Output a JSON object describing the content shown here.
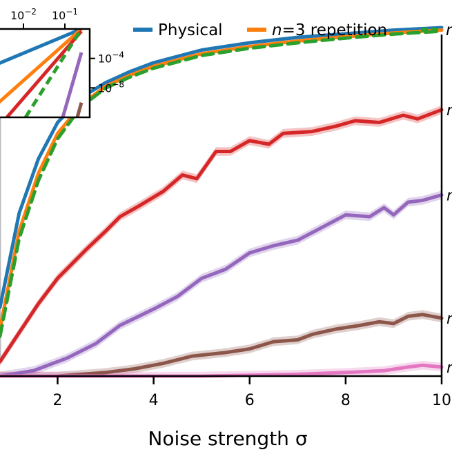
{
  "chart_data": {
    "type": "line",
    "xlabel": "Noise strength σ",
    "xlim": [
      0.8,
      10
    ],
    "ylim": [
      0,
      1
    ],
    "x_ticks": [
      {
        "value": 2,
        "label": "2"
      },
      {
        "value": 4,
        "label": "4"
      },
      {
        "value": 6,
        "label": "6"
      },
      {
        "value": 8,
        "label": "8"
      },
      {
        "value": 10,
        "label": "10"
      }
    ],
    "legend": {
      "placement": "top",
      "entries": [
        {
          "label": "Physical",
          "color": "#1f77b4",
          "style": "solid"
        },
        {
          "label": "n=3 repetition",
          "color": "#ff7f0e",
          "style": "solid"
        },
        {
          "label": "n",
          "color": "#2ca02c",
          "style": "dashed"
        }
      ]
    },
    "series": [
      {
        "label_key": "physical",
        "color": "#1f77b4",
        "style": "solid",
        "band": false,
        "points": [
          [
            0.8,
            0.19
          ],
          [
            1.2,
            0.45
          ],
          [
            1.6,
            0.6
          ],
          [
            2.0,
            0.7
          ],
          [
            2.5,
            0.77
          ],
          [
            3.0,
            0.81
          ],
          [
            3.5,
            0.84
          ],
          [
            4.0,
            0.865
          ],
          [
            5.0,
            0.9
          ],
          [
            6.0,
            0.92
          ],
          [
            7.0,
            0.935
          ],
          [
            8.0,
            0.945
          ],
          [
            9.0,
            0.955
          ],
          [
            10.0,
            0.962
          ]
        ]
      },
      {
        "label_key": "rep3",
        "color": "#ff7f0e",
        "style": "solid",
        "band": false,
        "points": [
          [
            0.8,
            0.13
          ],
          [
            1.2,
            0.4
          ],
          [
            1.6,
            0.56
          ],
          [
            2.0,
            0.67
          ],
          [
            2.5,
            0.75
          ],
          [
            3.0,
            0.8
          ],
          [
            3.5,
            0.83
          ],
          [
            4.0,
            0.855
          ],
          [
            5.0,
            0.89
          ],
          [
            6.0,
            0.91
          ],
          [
            7.0,
            0.925
          ],
          [
            8.0,
            0.937
          ],
          [
            9.0,
            0.947
          ],
          [
            10.0,
            0.955
          ]
        ]
      },
      {
        "label_key": "n_green",
        "color": "#2ca02c",
        "style": "dashed",
        "band": false,
        "points": [
          [
            0.8,
            0.11
          ],
          [
            1.2,
            0.38
          ],
          [
            1.6,
            0.54
          ],
          [
            2.0,
            0.655
          ],
          [
            2.5,
            0.745
          ],
          [
            3.0,
            0.795
          ],
          [
            3.5,
            0.825
          ],
          [
            4.0,
            0.85
          ],
          [
            5.0,
            0.885
          ],
          [
            6.0,
            0.905
          ],
          [
            7.0,
            0.92
          ],
          [
            8.0,
            0.933
          ],
          [
            9.0,
            0.944
          ],
          [
            10.0,
            0.952
          ]
        ]
      },
      {
        "label_key": "n_red",
        "color": "#d62728",
        "style": "solid",
        "band": true,
        "points": [
          [
            0.8,
            0.04
          ],
          [
            1.2,
            0.12
          ],
          [
            1.6,
            0.2
          ],
          [
            2.0,
            0.27
          ],
          [
            2.6,
            0.35
          ],
          [
            3.0,
            0.4
          ],
          [
            3.3,
            0.44
          ],
          [
            3.7,
            0.47
          ],
          [
            4.2,
            0.51
          ],
          [
            4.6,
            0.555
          ],
          [
            4.9,
            0.545
          ],
          [
            5.3,
            0.62
          ],
          [
            5.6,
            0.62
          ],
          [
            6.0,
            0.65
          ],
          [
            6.4,
            0.64
          ],
          [
            6.7,
            0.67
          ],
          [
            7.3,
            0.675
          ],
          [
            7.8,
            0.69
          ],
          [
            8.2,
            0.705
          ],
          [
            8.7,
            0.7
          ],
          [
            9.2,
            0.72
          ],
          [
            9.5,
            0.71
          ],
          [
            10.0,
            0.735
          ]
        ]
      },
      {
        "label_key": "n_purple",
        "color": "#9467bd",
        "style": "solid",
        "band": true,
        "points": [
          [
            0.8,
            0.0
          ],
          [
            1.5,
            0.015
          ],
          [
            2.2,
            0.05
          ],
          [
            2.8,
            0.09
          ],
          [
            3.3,
            0.14
          ],
          [
            4.0,
            0.185
          ],
          [
            4.5,
            0.22
          ],
          [
            5.0,
            0.27
          ],
          [
            5.5,
            0.295
          ],
          [
            6.0,
            0.34
          ],
          [
            6.5,
            0.36
          ],
          [
            7.0,
            0.375
          ],
          [
            7.5,
            0.41
          ],
          [
            8.0,
            0.445
          ],
          [
            8.5,
            0.44
          ],
          [
            8.8,
            0.465
          ],
          [
            9.0,
            0.445
          ],
          [
            9.3,
            0.48
          ],
          [
            9.6,
            0.485
          ],
          [
            10.0,
            0.5
          ]
        ]
      },
      {
        "label_key": "n_brown",
        "color": "#8c564b",
        "style": "solid",
        "band": true,
        "points": [
          [
            0.8,
            0.0
          ],
          [
            2.0,
            0.0
          ],
          [
            3.0,
            0.01
          ],
          [
            3.6,
            0.02
          ],
          [
            4.2,
            0.035
          ],
          [
            4.8,
            0.055
          ],
          [
            5.5,
            0.065
          ],
          [
            6.0,
            0.075
          ],
          [
            6.5,
            0.095
          ],
          [
            7.0,
            0.1
          ],
          [
            7.3,
            0.115
          ],
          [
            7.8,
            0.13
          ],
          [
            8.3,
            0.14
          ],
          [
            8.7,
            0.15
          ],
          [
            9.0,
            0.145
          ],
          [
            9.3,
            0.165
          ],
          [
            9.6,
            0.17
          ],
          [
            10.0,
            0.16
          ]
        ]
      },
      {
        "label_key": "n_pink",
        "color": "#e377c2",
        "style": "solid",
        "band": true,
        "points": [
          [
            0.8,
            0.0
          ],
          [
            5.0,
            0.0
          ],
          [
            7.0,
            0.005
          ],
          [
            8.0,
            0.01
          ],
          [
            8.8,
            0.015
          ],
          [
            9.3,
            0.025
          ],
          [
            9.6,
            0.03
          ],
          [
            10.0,
            0.025
          ]
        ]
      }
    ],
    "series_labels": [
      {
        "series": "n_red",
        "text": "n"
      },
      {
        "series": "n_purple",
        "text": "n"
      },
      {
        "series": "n_brown",
        "text": "n"
      },
      {
        "series": "n_pink",
        "text": "n"
      }
    ],
    "inset": {
      "scale": "log-log",
      "x_ticks": [
        {
          "value": -2,
          "label": "10^-2"
        },
        {
          "value": -1,
          "label": "10^-1"
        }
      ],
      "y_ticks": [
        {
          "value": -4,
          "label": "10^-4"
        },
        {
          "value": -8,
          "label": "10^-8"
        }
      ],
      "xlim": [
        -2.9,
        -0.4
      ],
      "ylim": [
        -12,
        0
      ],
      "series": [
        {
          "color": "#1f77b4",
          "style": "solid",
          "points": [
            [
              -2.9,
              -5.4
            ],
            [
              -0.6,
              0.0
            ]
          ]
        },
        {
          "color": "#ff7f0e",
          "style": "solid",
          "points": [
            [
              -2.9,
              -11.5
            ],
            [
              -0.6,
              0.0
            ]
          ]
        },
        {
          "color": "#d62728",
          "style": "solid",
          "points": [
            [
              -2.4,
              -12.0
            ],
            [
              -0.6,
              -0.3
            ]
          ]
        },
        {
          "color": "#2ca02c",
          "style": "dashed",
          "points": [
            [
              -1.95,
              -12.0
            ],
            [
              -0.6,
              0.0
            ]
          ]
        },
        {
          "color": "#9467bd",
          "style": "solid",
          "points": [
            [
              -1.05,
              -12.0
            ],
            [
              -0.6,
              -3.2
            ]
          ]
        },
        {
          "color": "#8c564b",
          "style": "solid",
          "points": [
            [
              -0.7,
              -12.0
            ],
            [
              -0.6,
              -10.0
            ]
          ]
        }
      ]
    }
  }
}
